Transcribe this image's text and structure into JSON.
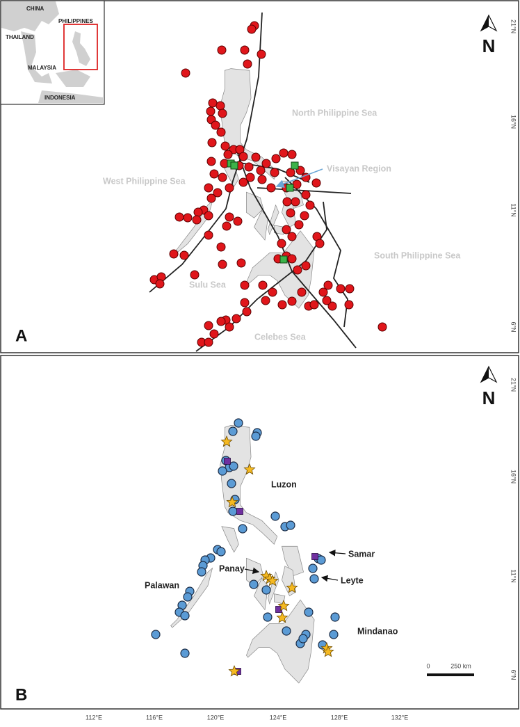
{
  "panel_a": {
    "label": "A",
    "north": "N",
    "inset": {
      "labels": [
        "CHINA",
        "THAILAND",
        "PHILIPPINES",
        "MALAYSIA",
        "INDONESIA"
      ]
    },
    "seas": [
      "North Philippine Sea",
      "West Philippine Sea",
      "Visayan Region",
      "South Philippine Sea",
      "Sulu Sea",
      "Celebes Sea"
    ],
    "lat_labels": [
      "21°N",
      "16°N",
      "11°N",
      "6°N"
    ]
  },
  "panel_b": {
    "label": "B",
    "north": "N",
    "islands": [
      "Luzon",
      "Samar",
      "Panay",
      "Leyte",
      "Palawan",
      "Mindanao"
    ],
    "scale": {
      "start": "0",
      "end": "250 km"
    },
    "lat_labels": [
      "21°N",
      "16°N",
      "11°N",
      "6°N"
    ],
    "lon_labels": [
      "112°E",
      "116°E",
      "120°E",
      "124°E",
      "128°E",
      "132°E"
    ]
  }
}
